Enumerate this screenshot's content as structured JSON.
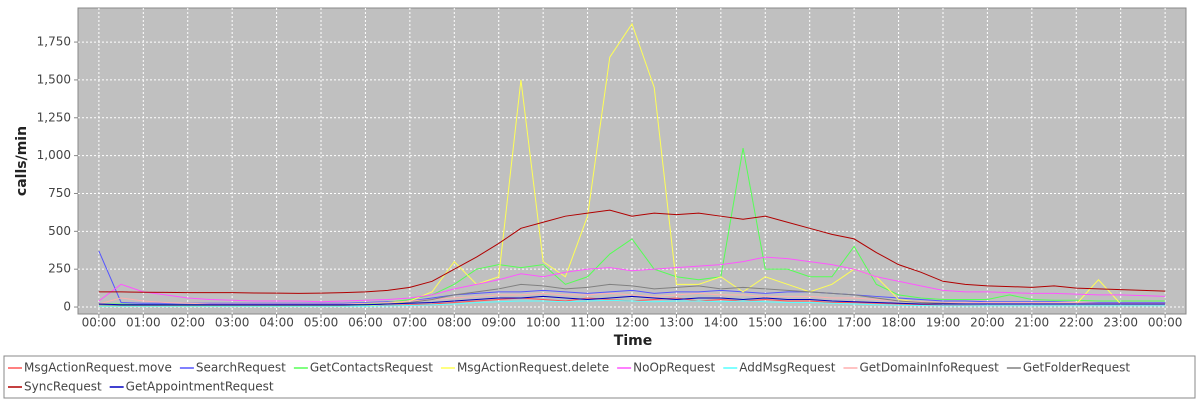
{
  "chart_data": {
    "type": "line",
    "ylabel": "calls/min",
    "xlabel": "Time",
    "x": [
      0,
      0.5,
      1,
      1.5,
      2,
      2.5,
      3,
      3.5,
      4,
      4.5,
      5,
      5.5,
      6,
      6.5,
      7,
      7.5,
      8,
      8.5,
      9,
      9.5,
      10,
      10.5,
      11,
      11.5,
      12,
      12.5,
      13,
      13.5,
      14,
      14.5,
      15,
      15.5,
      16,
      16.5,
      17,
      17.5,
      18,
      18.5,
      19,
      19.5,
      20,
      20.5,
      21,
      21.5,
      22,
      22.5,
      23,
      23.5,
      24
    ],
    "xlim": [
      -0.47,
      24.47
    ],
    "xticks": [
      {
        "value": 0,
        "label": "00:00"
      },
      {
        "value": 1,
        "label": "01:00"
      },
      {
        "value": 2,
        "label": "02:00"
      },
      {
        "value": 3,
        "label": "03:00"
      },
      {
        "value": 4,
        "label": "04:00"
      },
      {
        "value": 5,
        "label": "05:00"
      },
      {
        "value": 6,
        "label": "06:00"
      },
      {
        "value": 7,
        "label": "07:00"
      },
      {
        "value": 8,
        "label": "08:00"
      },
      {
        "value": 9,
        "label": "09:00"
      },
      {
        "value": 10,
        "label": "10:00"
      },
      {
        "value": 11,
        "label": "11:00"
      },
      {
        "value": 12,
        "label": "12:00"
      },
      {
        "value": 13,
        "label": "13:00"
      },
      {
        "value": 14,
        "label": "14:00"
      },
      {
        "value": 15,
        "label": "15:00"
      },
      {
        "value": 16,
        "label": "16:00"
      },
      {
        "value": 17,
        "label": "17:00"
      },
      {
        "value": 18,
        "label": "18:00"
      },
      {
        "value": 19,
        "label": "19:00"
      },
      {
        "value": 20,
        "label": "20:00"
      },
      {
        "value": 21,
        "label": "21:00"
      },
      {
        "value": 22,
        "label": "22:00"
      },
      {
        "value": 23,
        "label": "23:00"
      },
      {
        "value": 24,
        "label": "00:00"
      }
    ],
    "ylim": [
      -46,
      1975
    ],
    "yticks": [
      0,
      250,
      500,
      750,
      {
        "value": 1000,
        "label": "1,000"
      },
      {
        "value": 1250,
        "label": "1,250"
      },
      {
        "value": 1500,
        "label": "1,500"
      },
      {
        "value": 1750,
        "label": "1,750"
      }
    ],
    "grid": true,
    "series": [
      {
        "name": "MsgActionRequest.move",
        "color": "#ff5555",
        "values": [
          5,
          5,
          5,
          5,
          5,
          5,
          5,
          5,
          5,
          5,
          5,
          5,
          8,
          10,
          15,
          20,
          30,
          40,
          50,
          60,
          50,
          40,
          60,
          50,
          40,
          50,
          60,
          40,
          50,
          40,
          50,
          40,
          40,
          30,
          30,
          25,
          20,
          15,
          10,
          10,
          8,
          8,
          8,
          8,
          8,
          8,
          8,
          8,
          8
        ]
      },
      {
        "name": "SearchRequest",
        "color": "#5555ff",
        "values": [
          370,
          30,
          25,
          25,
          25,
          25,
          25,
          25,
          25,
          25,
          25,
          25,
          30,
          35,
          40,
          60,
          80,
          90,
          100,
          100,
          110,
          100,
          90,
          100,
          110,
          90,
          100,
          100,
          110,
          100,
          90,
          100,
          100,
          90,
          80,
          70,
          60,
          50,
          40,
          40,
          35,
          35,
          35,
          35,
          30,
          30,
          30,
          30,
          30
        ]
      },
      {
        "name": "GetContactsRequest",
        "color": "#55ff55",
        "values": [
          20,
          20,
          15,
          15,
          15,
          15,
          15,
          15,
          15,
          15,
          15,
          15,
          20,
          30,
          50,
          80,
          150,
          250,
          280,
          260,
          280,
          150,
          200,
          350,
          450,
          250,
          200,
          180,
          200,
          1050,
          250,
          250,
          200,
          200,
          400,
          150,
          80,
          60,
          50,
          50,
          50,
          80,
          50,
          45,
          45,
          40,
          40,
          40,
          40
        ]
      },
      {
        "name": "MsgActionRequest.delete",
        "color": "#ffff55",
        "values": [
          5,
          5,
          5,
          5,
          5,
          5,
          5,
          5,
          5,
          5,
          5,
          5,
          10,
          20,
          40,
          100,
          300,
          150,
          200,
          1500,
          300,
          200,
          600,
          1650,
          1870,
          1450,
          150,
          150,
          200,
          100,
          200,
          150,
          100,
          150,
          250,
          200,
          50,
          30,
          20,
          20,
          20,
          20,
          20,
          20,
          20,
          180,
          20,
          20,
          20
        ]
      },
      {
        "name": "NoOpRequest",
        "color": "#ff55ff",
        "values": [
          40,
          150,
          100,
          80,
          60,
          50,
          45,
          40,
          40,
          40,
          35,
          40,
          45,
          50,
          60,
          80,
          120,
          150,
          180,
          220,
          200,
          230,
          250,
          260,
          240,
          250,
          260,
          270,
          280,
          300,
          330,
          320,
          300,
          280,
          250,
          200,
          170,
          140,
          110,
          100,
          100,
          95,
          90,
          90,
          85,
          80,
          80,
          75,
          70
        ]
      },
      {
        "name": "AddMsgRequest",
        "color": "#55ffff",
        "values": [
          5,
          5,
          5,
          5,
          5,
          5,
          5,
          5,
          5,
          5,
          5,
          5,
          5,
          8,
          10,
          15,
          20,
          30,
          35,
          40,
          40,
          35,
          40,
          45,
          40,
          35,
          40,
          40,
          35,
          40,
          35,
          30,
          30,
          25,
          20,
          15,
          12,
          10,
          8,
          8,
          8,
          8,
          8,
          8,
          8,
          8,
          8,
          8,
          8
        ]
      },
      {
        "name": "GetDomainInfoRequest",
        "color": "#ffafaf",
        "values": [
          20,
          60,
          40,
          30,
          25,
          20,
          20,
          20,
          20,
          20,
          20,
          20,
          25,
          30,
          40,
          50,
          60,
          70,
          80,
          80,
          90,
          80,
          80,
          90,
          80,
          70,
          80,
          90,
          80,
          80,
          70,
          70,
          70,
          60,
          60,
          50,
          40,
          35,
          30,
          30,
          30,
          30,
          30,
          30,
          30,
          25,
          25,
          25,
          25
        ]
      },
      {
        "name": "GetFolderRequest",
        "color": "#808080",
        "values": [
          15,
          10,
          10,
          10,
          10,
          10,
          10,
          10,
          10,
          10,
          10,
          10,
          15,
          20,
          30,
          50,
          80,
          100,
          120,
          150,
          140,
          120,
          130,
          150,
          140,
          120,
          130,
          140,
          120,
          130,
          120,
          110,
          100,
          90,
          80,
          60,
          40,
          30,
          25,
          20,
          20,
          20,
          20,
          20,
          20,
          20,
          20,
          20,
          20
        ]
      },
      {
        "name": "SyncRequest",
        "color": "#b00000",
        "values": [
          100,
          100,
          98,
          97,
          95,
          95,
          95,
          93,
          92,
          90,
          92,
          95,
          100,
          110,
          130,
          170,
          250,
          330,
          420,
          520,
          560,
          600,
          620,
          640,
          600,
          620,
          610,
          620,
          600,
          580,
          600,
          560,
          520,
          480,
          450,
          360,
          280,
          230,
          170,
          150,
          140,
          135,
          130,
          140,
          125,
          120,
          115,
          110,
          105
        ]
      },
      {
        "name": "GetAppointmentRequest",
        "color": "#0000c0",
        "values": [
          20,
          15,
          15,
          15,
          15,
          15,
          15,
          15,
          15,
          15,
          15,
          15,
          15,
          20,
          25,
          30,
          40,
          50,
          60,
          60,
          70,
          60,
          50,
          60,
          70,
          60,
          50,
          60,
          60,
          50,
          60,
          50,
          50,
          40,
          35,
          30,
          25,
          20,
          20,
          20,
          20,
          20,
          20,
          20,
          20,
          20,
          20,
          20,
          20
        ]
      }
    ]
  }
}
